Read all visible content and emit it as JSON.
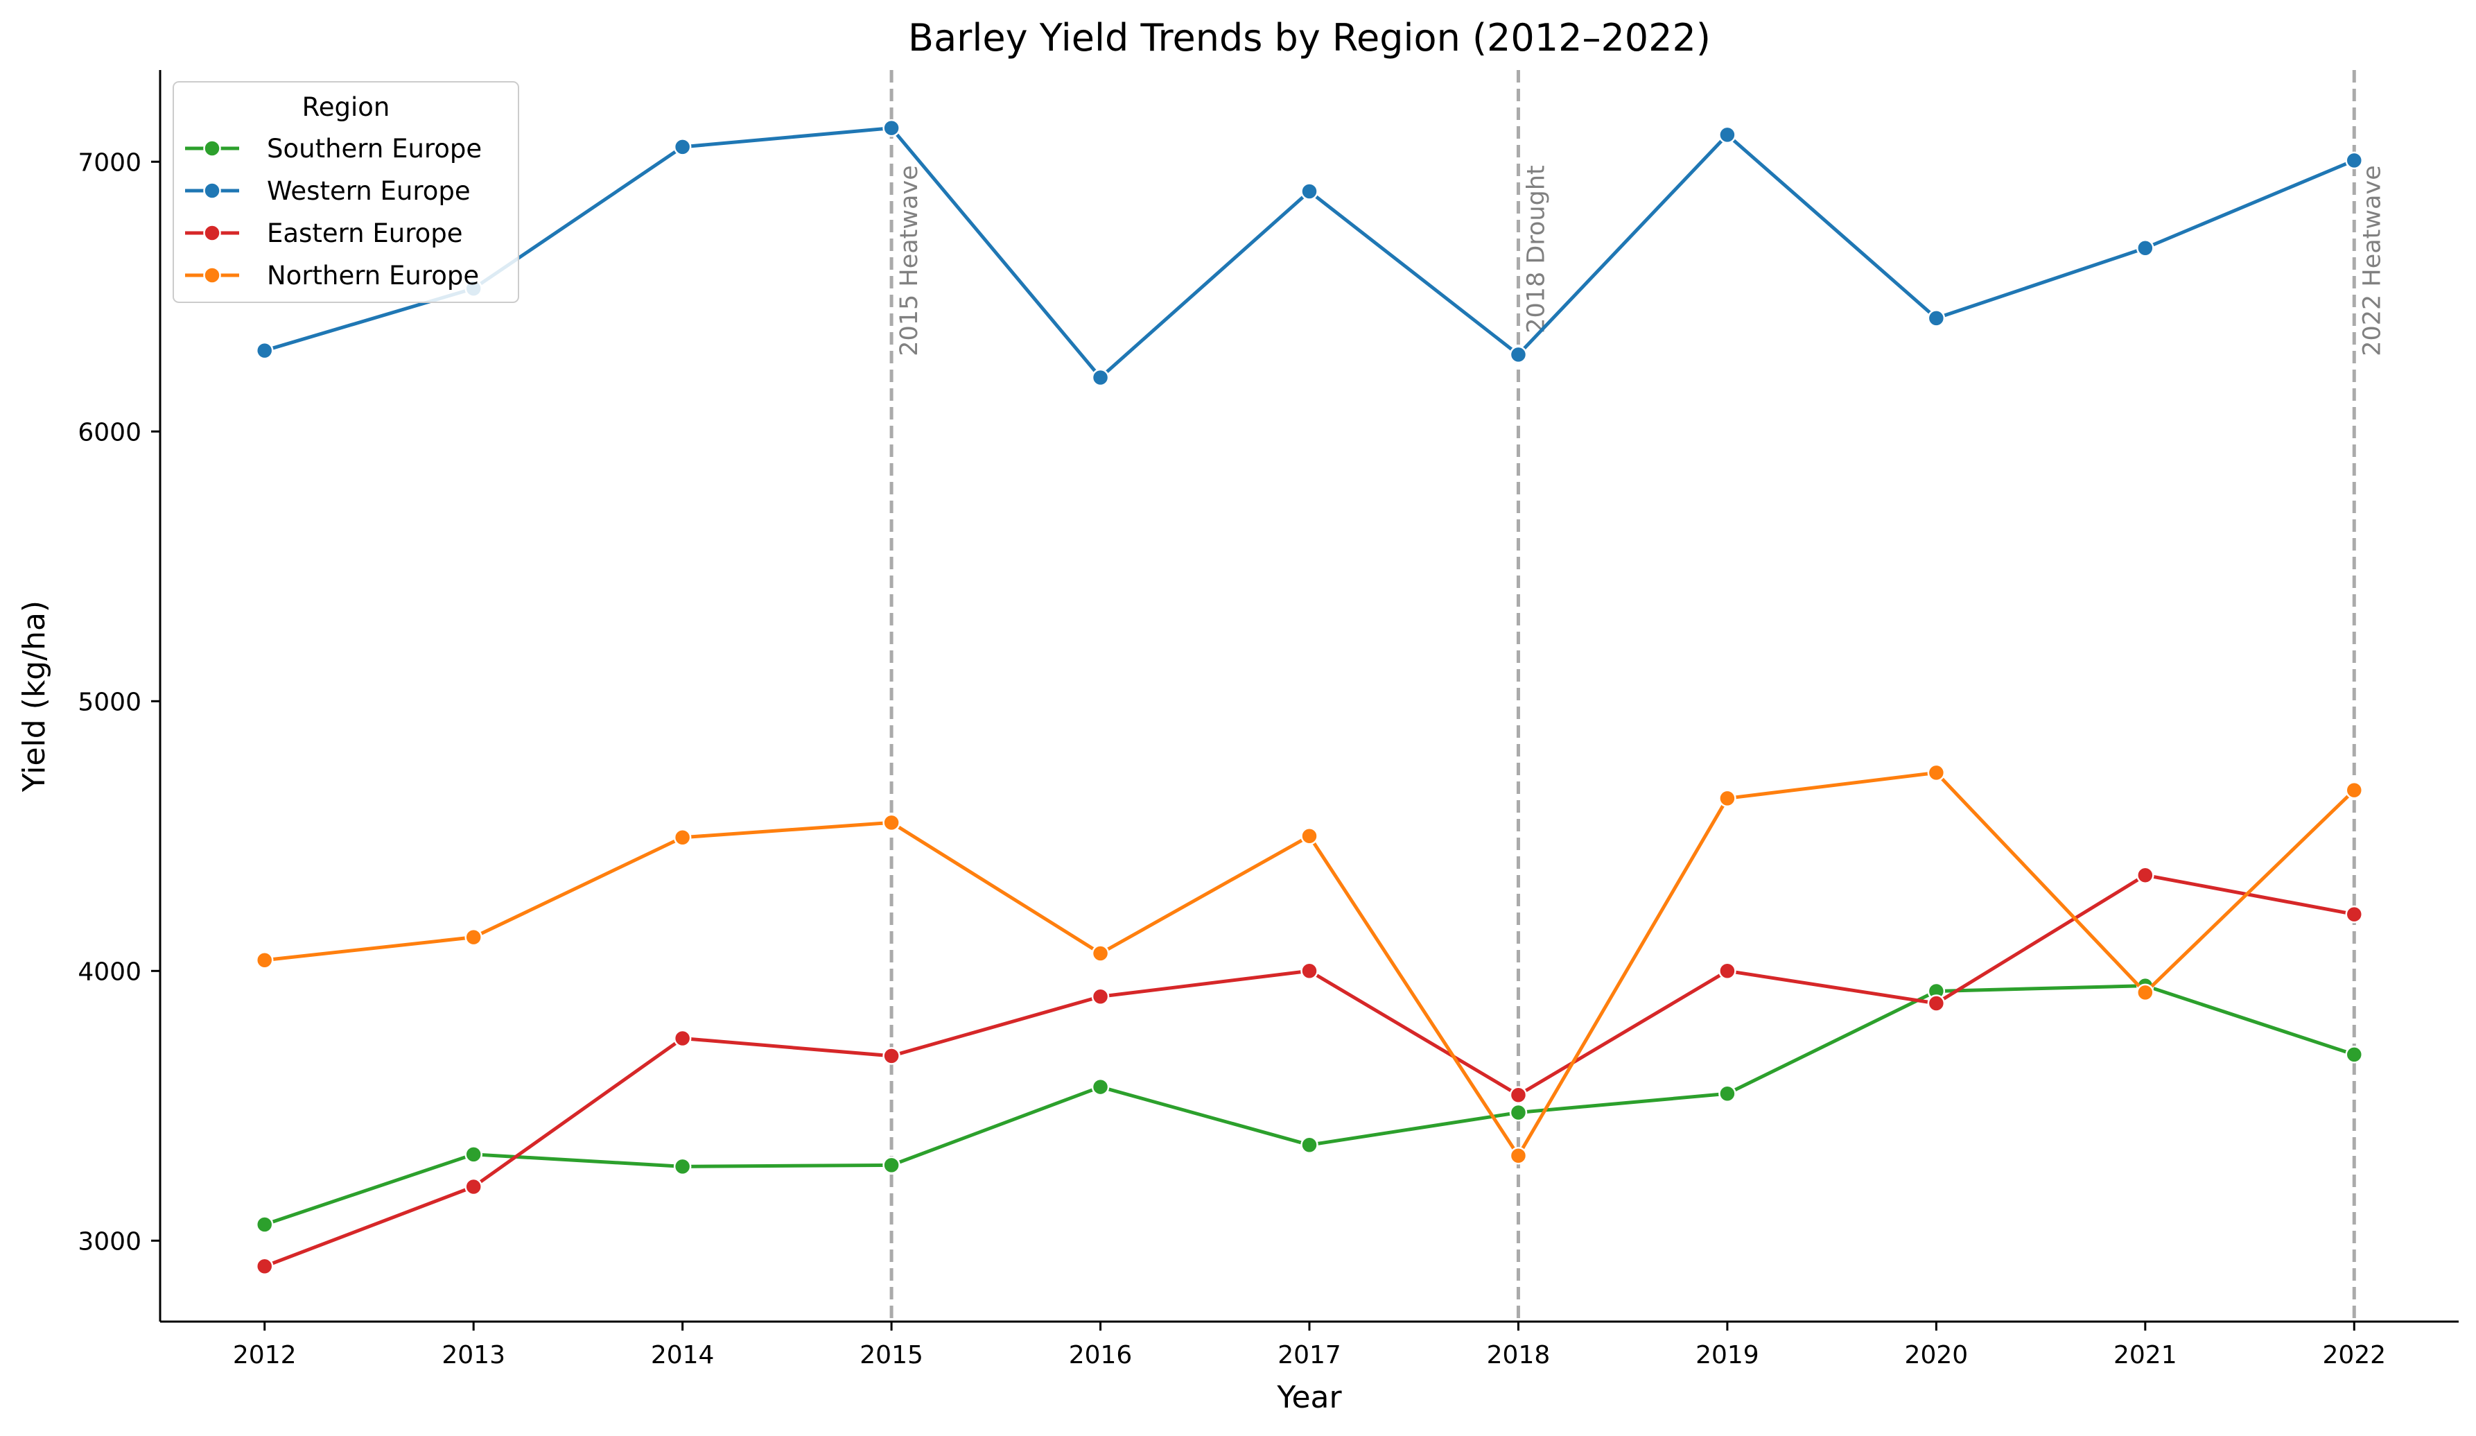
{
  "chart_data": {
    "type": "line",
    "title": "Barley Yield Trends by Region (2012–2022)",
    "xlabel": "Year",
    "ylabel": "Yield (kg/ha)",
    "x": [
      2012,
      2013,
      2014,
      2015,
      2016,
      2017,
      2018,
      2019,
      2020,
      2021,
      2022
    ],
    "x_ticks": [
      "2012",
      "2013",
      "2014",
      "2015",
      "2016",
      "2017",
      "2018",
      "2019",
      "2020",
      "2021",
      "2022"
    ],
    "y_ticks": [
      "3000",
      "4000",
      "5000",
      "6000",
      "7000"
    ],
    "xlim": [
      2011.5,
      2022.5
    ],
    "ylim": [
      2700,
      7340
    ],
    "grid": false,
    "legend": {
      "title": "Region",
      "placement": "top-left"
    },
    "series": [
      {
        "name": "Southern Europe",
        "color": "#2ca02c",
        "values": [
          3060,
          3320,
          3275,
          3280,
          3570,
          3355,
          3475,
          3545,
          3925,
          3945,
          3690
        ]
      },
      {
        "name": "Western Europe",
        "color": "#1f77b4",
        "values": [
          6300,
          6530,
          7055,
          7125,
          6200,
          6890,
          6285,
          7100,
          6420,
          6680,
          7005
        ]
      },
      {
        "name": "Eastern Europe",
        "color": "#d62728",
        "values": [
          2905,
          3200,
          3750,
          3685,
          3905,
          4000,
          3540,
          4000,
          3880,
          4355,
          4210
        ]
      },
      {
        "name": "Northern Europe",
        "color": "#ff7f0e",
        "values": [
          4040,
          4125,
          4495,
          4550,
          4065,
          4500,
          3315,
          4640,
          4735,
          3920,
          4670
        ]
      }
    ],
    "annotations": [
      {
        "x": 2015,
        "label": "2015 Heatwave"
      },
      {
        "x": 2018,
        "label": "2018 Drought"
      },
      {
        "x": 2022,
        "label": "2022 Heatwave"
      }
    ],
    "annotation_color": "#aaaaaa",
    "annotation_text_color": "#808080"
  }
}
